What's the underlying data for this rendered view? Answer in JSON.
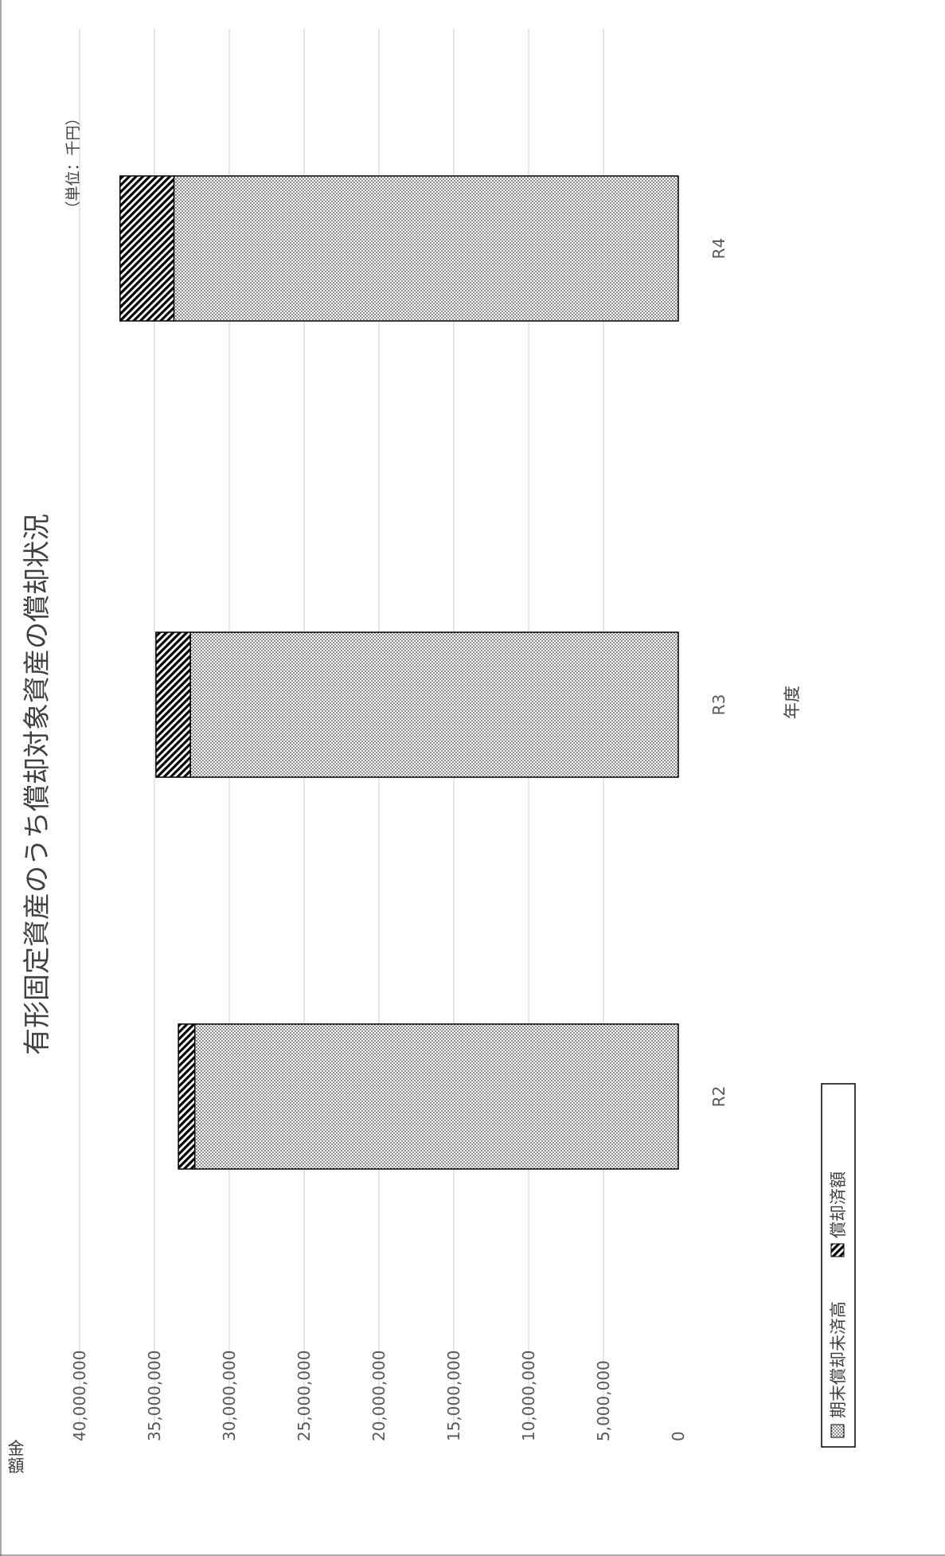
{
  "chart_data": {
    "type": "bar",
    "stacked": true,
    "orientation": "vertical (page rotated 90°)",
    "title": "有形固定資産のうち償却対象資産の償却状況",
    "unit_note": "（単位：千円）",
    "xlabel": "年度",
    "ylabel": "金額",
    "categories": [
      "R2",
      "R3",
      "R4"
    ],
    "series": [
      {
        "name": "期末償却未済高",
        "values": [
          32300000,
          32600000,
          33700000
        ]
      },
      {
        "name": "償却済額",
        "values": [
          1100000,
          2300000,
          3600000
        ]
      }
    ],
    "ylim": [
      0,
      40000000
    ],
    "yticks": [
      "0",
      "5,000,000",
      "10,000,000",
      "15,000,000",
      "20,000,000",
      "25,000,000",
      "30,000,000",
      "35,000,000",
      "40,000,000"
    ],
    "grid": true,
    "legend": [
      "期末償却未済高",
      "償却済額"
    ],
    "legend_placement": "bottom",
    "colors": {
      "grid": "#d9d9d9",
      "bar_stroke": "#000000",
      "text": "#595959"
    }
  }
}
